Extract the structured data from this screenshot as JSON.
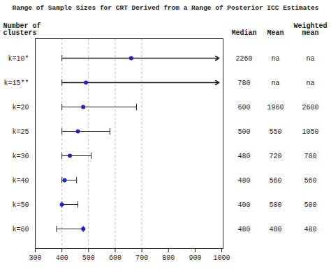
{
  "chart_data": {
    "type": "interval",
    "title": "Range of Sample Sizes for CRT Derived from a Range of Posterior ICC Estimates",
    "categories": [
      "k=10*",
      "k=15**",
      "k=20",
      "k=25",
      "k=30",
      "k=40",
      "k=50",
      "k=60"
    ],
    "values": [
      660,
      490,
      480,
      460,
      430,
      410,
      400,
      480
    ],
    "low": [
      400,
      400,
      400,
      400,
      400,
      400,
      400,
      380
    ],
    "high": [
      null,
      null,
      680,
      580,
      510,
      455,
      460,
      480
    ],
    "right_arrow": [
      true,
      true,
      false,
      false,
      false,
      false,
      false,
      false
    ],
    "arrow_end": 990,
    "row_header": [
      "Number of",
      "clusters"
    ],
    "columns": [
      {
        "name": [
          "Median"
        ],
        "values": [
          "2260",
          "780",
          "600",
          "500",
          "480",
          "480",
          "400",
          "480"
        ]
      },
      {
        "name": [
          "Mean"
        ],
        "values": [
          "na",
          "na",
          "1960",
          "550",
          "720",
          "560",
          "500",
          "480"
        ]
      },
      {
        "name": [
          "Weighted",
          "mean"
        ],
        "values": [
          "na",
          "na",
          "2600",
          "1050",
          "780",
          "560",
          "500",
          "480"
        ]
      }
    ],
    "xlim": [
      300,
      1005
    ],
    "xticks": [
      300,
      400,
      500,
      600,
      700,
      800,
      900,
      1000
    ],
    "dashed_x": [
      400,
      500,
      600,
      700
    ],
    "color": "#2020cc",
    "grid": false
  }
}
